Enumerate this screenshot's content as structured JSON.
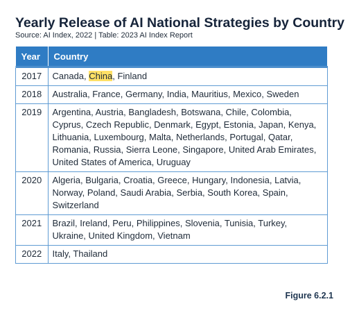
{
  "header": {
    "title": "Yearly Release of AI National Strategies by Country",
    "source": "Source: AI Index, 2022 | Table: 2023 AI Index Report"
  },
  "table": {
    "columns": [
      "Year",
      "Country"
    ],
    "rows": [
      {
        "year": "2017",
        "segments": [
          "Canada, ",
          "China",
          ", Finland"
        ],
        "highlight": 1
      },
      {
        "year": "2018",
        "segments": [
          "Australia, France, Germany, India, Mauritius, Mexico, Sweden"
        ]
      },
      {
        "year": "2019",
        "segments": [
          "Argentina, Austria, Bangladesh, Botswana, Chile, Colombia, Cyprus, Czech Republic, Denmark, Egypt, Estonia, Japan, Kenya, Lithuania, Luxembourg, Malta, Netherlands, Portugal, Qatar, Romania, Russia, Sierra Leone, Singapore, United Arab Emirates, United States of America, Uruguay"
        ]
      },
      {
        "year": "2020",
        "segments": [
          "Algeria, Bulgaria, Croatia, Greece, Hungary, Indonesia, Latvia, Norway, Poland, Saudi Arabia, Serbia, South Korea, Spain, Switzerland"
        ]
      },
      {
        "year": "2021",
        "segments": [
          "Brazil, Ireland, Peru, Philippines, Slovenia, Tunisia, Turkey, Ukraine, United Kingdom, Vietnam"
        ]
      },
      {
        "year": "2022",
        "segments": [
          "Italy, Thailand"
        ]
      }
    ]
  },
  "figure_label": "Figure 6.2.1"
}
